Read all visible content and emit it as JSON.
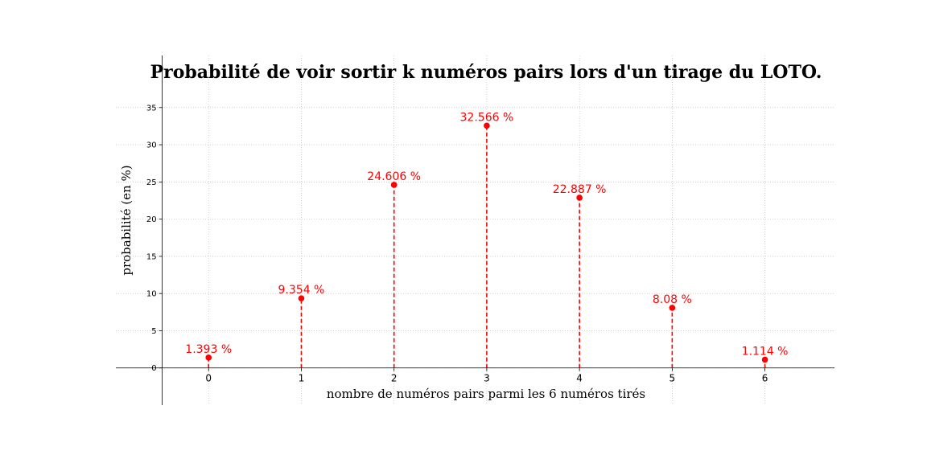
{
  "chart_data": {
    "type": "scatter",
    "title": "Probabilité de voir sortir k numéros pairs lors d'un tirage du LOTO.",
    "xlabel": "nombre de numéros pairs parmi les 6 numéros tirés",
    "ylabel": "probabilité (en %)",
    "x": [
      0,
      1,
      2,
      3,
      4,
      5,
      6
    ],
    "values": [
      1.393,
      9.354,
      24.606,
      32.566,
      22.887,
      8.08,
      1.114
    ],
    "data_labels": [
      "1.393 %",
      "9.354 %",
      "24.606 %",
      "32.566 %",
      "22.887 %",
      "8.08 %",
      "1.114 %"
    ],
    "x_ticks": [
      "0",
      "1",
      "2",
      "3",
      "4",
      "5",
      "6"
    ],
    "y_ticks": [
      "0",
      "5",
      "10",
      "15",
      "20",
      "25",
      "30",
      "35"
    ],
    "y_tick_values": [
      0,
      5,
      10,
      15,
      20,
      25,
      30,
      35
    ],
    "xlim": [
      -1,
      6.75
    ],
    "ylim": [
      -5,
      42
    ],
    "marker_style": "stem-dashed",
    "grid": true,
    "color": "#ff0000"
  }
}
